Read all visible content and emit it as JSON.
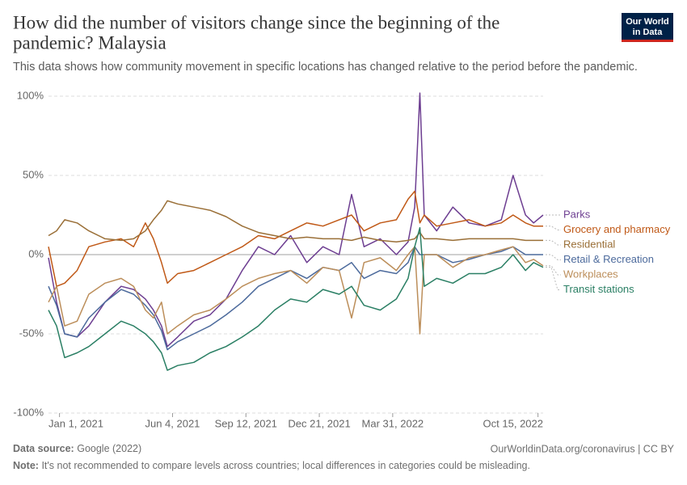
{
  "chart_data": {
    "type": "line",
    "title": "How did the number of visitors change since the beginning of the pandemic? Malaysia",
    "title_lines": [
      "How did the number of visitors change since the beginning of the",
      "pandemic? Malaysia"
    ],
    "subtitle": "This data shows how community movement in specific locations has changed relative to the period before the pandemic.",
    "logo_lines": [
      "Our World",
      "in Data"
    ],
    "source_label": "Data source:",
    "source": "Google (2022)",
    "url": "OurWorldinData.org/coronavirus | CC BY",
    "note_label": "Note:",
    "note": "It's not recommended to compare levels across countries; local differences in categories could be misleading.",
    "x": [
      "2020-12-17",
      "2020-12-28",
      "2021-01-08",
      "2021-01-25",
      "2021-02-10",
      "2021-03-04",
      "2021-03-26",
      "2021-04-12",
      "2021-04-28",
      "2021-05-09",
      "2021-05-20",
      "2021-05-28",
      "2021-06-11",
      "2021-07-03",
      "2021-07-25",
      "2021-08-16",
      "2021-09-07",
      "2021-09-29",
      "2021-10-21",
      "2021-11-12",
      "2021-12-04",
      "2021-12-26",
      "2022-01-17",
      "2022-02-03",
      "2022-02-20",
      "2022-03-14",
      "2022-04-05",
      "2022-04-21",
      "2022-04-30",
      "2022-05-07",
      "2022-05-13",
      "2022-05-30",
      "2022-06-21",
      "2022-07-13",
      "2022-08-04",
      "2022-08-26",
      "2022-09-11",
      "2022-09-28",
      "2022-10-09",
      "2022-10-22"
    ],
    "xlim": [
      "2020-12-17",
      "2022-10-22"
    ],
    "xticks": [
      {
        "value": "2021-01-01",
        "label": "Jan 1, 2021"
      },
      {
        "value": "2021-06-04",
        "label": "Jun 4, 2021"
      },
      {
        "value": "2021-09-12",
        "label": "Sep 12, 2021"
      },
      {
        "value": "2021-12-21",
        "label": "Dec 21, 2021"
      },
      {
        "value": "2022-03-31",
        "label": "Mar 31, 2022"
      },
      {
        "value": "2022-10-15",
        "label": "Oct 15, 2022"
      }
    ],
    "ylim": [
      -100,
      100
    ],
    "yticks": [
      {
        "value": -100,
        "label": "-100%"
      },
      {
        "value": -50,
        "label": "-50%"
      },
      {
        "value": 0,
        "label": "0%"
      },
      {
        "value": 50,
        "label": "50%"
      },
      {
        "value": 100,
        "label": "100%"
      }
    ],
    "grid": true,
    "series": [
      {
        "name": "Parks",
        "color": "#6d3e91",
        "values": [
          -2,
          -30,
          -50,
          -52,
          -45,
          -30,
          -20,
          -22,
          -28,
          -35,
          -45,
          -58,
          -52,
          -42,
          -38,
          -28,
          -10,
          5,
          0,
          12,
          -5,
          5,
          0,
          38,
          5,
          10,
          0,
          8,
          30,
          102,
          25,
          15,
          30,
          20,
          18,
          22,
          50,
          25,
          20,
          25
        ]
      },
      {
        "name": "Grocery and pharmacy",
        "color": "#c05917",
        "values": [
          5,
          -20,
          -18,
          -10,
          5,
          8,
          10,
          5,
          20,
          10,
          -5,
          -18,
          -12,
          -10,
          -5,
          0,
          5,
          12,
          10,
          15,
          20,
          18,
          22,
          25,
          15,
          20,
          22,
          35,
          40,
          20,
          25,
          18,
          20,
          22,
          18,
          20,
          25,
          20,
          18,
          18
        ]
      },
      {
        "name": "Residential",
        "color": "#9a6f37",
        "values": [
          12,
          15,
          22,
          20,
          15,
          10,
          9,
          10,
          15,
          22,
          28,
          34,
          32,
          30,
          28,
          24,
          18,
          14,
          12,
          10,
          11,
          10,
          10,
          9,
          11,
          9,
          8,
          9,
          10,
          14,
          10,
          10,
          9,
          10,
          10,
          10,
          10,
          9,
          9,
          9
        ]
      },
      {
        "name": "Retail & Recreation",
        "color": "#4c6a9c",
        "values": [
          -20,
          -32,
          -50,
          -52,
          -40,
          -30,
          -22,
          -25,
          -32,
          -38,
          -48,
          -60,
          -55,
          -50,
          -45,
          -38,
          -30,
          -20,
          -15,
          -10,
          -15,
          -8,
          -10,
          -5,
          -15,
          -10,
          -12,
          -5,
          5,
          0,
          0,
          0,
          -5,
          -3,
          0,
          2,
          5,
          0,
          0,
          0
        ]
      },
      {
        "name": "Workplaces",
        "color": "#bc8e5a",
        "values": [
          -30,
          -20,
          -45,
          -42,
          -25,
          -18,
          -15,
          -20,
          -35,
          -40,
          -30,
          -50,
          -45,
          -38,
          -35,
          -28,
          -20,
          -15,
          -12,
          -10,
          -18,
          -8,
          -10,
          -40,
          -5,
          -2,
          -10,
          0,
          5,
          -50,
          0,
          0,
          -8,
          -2,
          0,
          3,
          5,
          -5,
          -3,
          -7
        ]
      },
      {
        "name": "Transit stations",
        "color": "#2a7f64",
        "values": [
          -35,
          -45,
          -65,
          -62,
          -58,
          -50,
          -42,
          -45,
          -50,
          -55,
          -62,
          -73,
          -70,
          -68,
          -62,
          -58,
          -52,
          -45,
          -35,
          -28,
          -30,
          -22,
          -25,
          -20,
          -32,
          -35,
          -28,
          -15,
          5,
          17,
          -20,
          -15,
          -18,
          -12,
          -12,
          -8,
          0,
          -10,
          -5,
          -8
        ]
      }
    ]
  }
}
